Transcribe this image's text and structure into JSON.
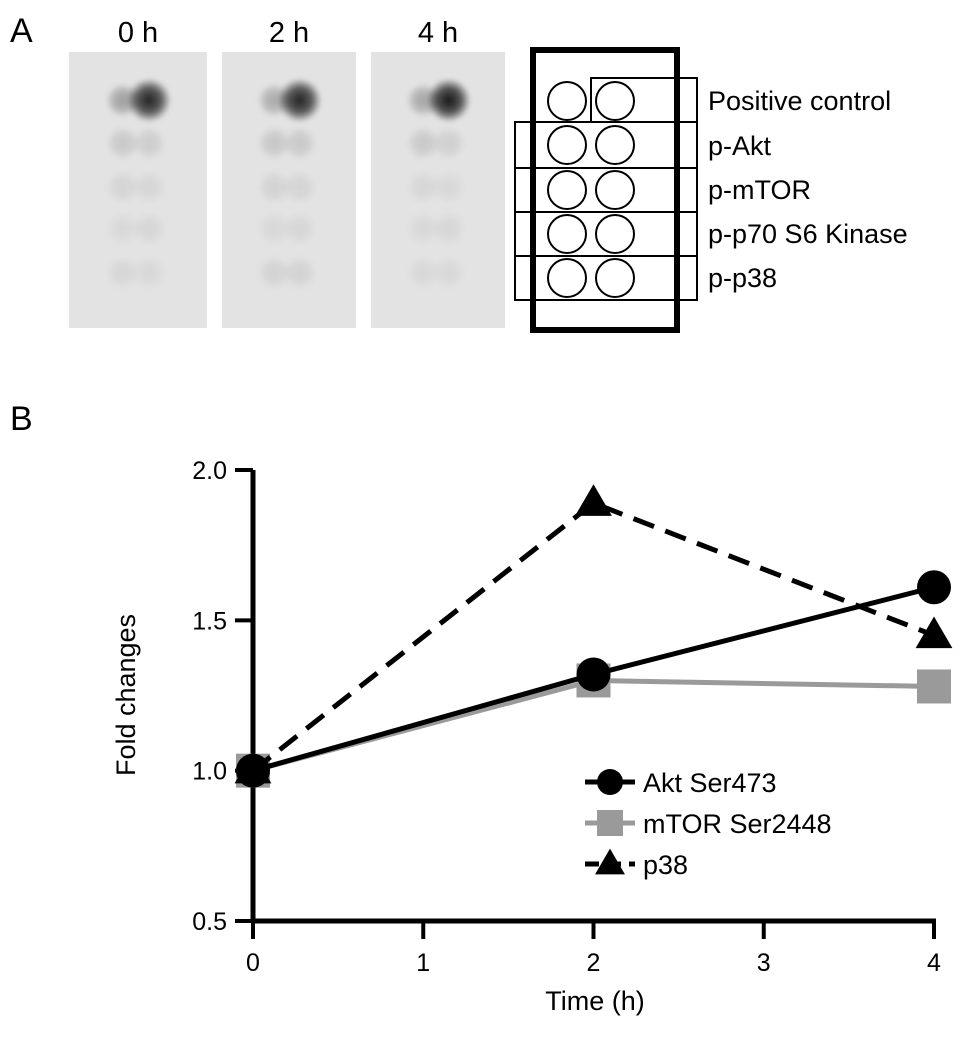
{
  "panel_a": {
    "label": "A",
    "blots": [
      {
        "time_label": "0 h",
        "spots": [
          0.3,
          0.85,
          0.12,
          0.1,
          0.07,
          0.06,
          0.05,
          0.06,
          0.06,
          0.05
        ]
      },
      {
        "time_label": "2 h",
        "spots": [
          0.25,
          0.85,
          0.13,
          0.12,
          0.08,
          0.07,
          0.05,
          0.06,
          0.08,
          0.08
        ]
      },
      {
        "time_label": "4 h",
        "spots": [
          0.27,
          0.9,
          0.12,
          0.09,
          0.06,
          0.05,
          0.05,
          0.06,
          0.05,
          0.05
        ]
      }
    ],
    "array_rows": [
      "Positive control",
      "p-Akt",
      "p-mTOR",
      "p-p70 S6 Kinase",
      "p-p38"
    ]
  },
  "panel_b": {
    "label": "B"
  },
  "chart_data": {
    "type": "line",
    "title": "",
    "xlabel": "Time (h)",
    "ylabel": "Fold changes",
    "xlim": [
      0,
      4
    ],
    "ylim": [
      0.5,
      2.0
    ],
    "xticks": [
      0,
      1,
      2,
      3,
      4
    ],
    "yticks": [
      0.5,
      1.0,
      1.5,
      2.0
    ],
    "xtick_labels": [
      "0",
      "1",
      "2",
      "3",
      "4"
    ],
    "ytick_labels": [
      "0.5",
      "1.0",
      "1.5",
      "2.0"
    ],
    "grid": false,
    "legend_position": "bottom-right",
    "series": [
      {
        "name": "mTOR Ser2448",
        "marker": "square",
        "line": "solid",
        "color": "#9a9a9a",
        "x": [
          0,
          2,
          4
        ],
        "y": [
          1.0,
          1.3,
          1.28
        ]
      },
      {
        "name": "Akt Ser473",
        "marker": "circle",
        "line": "solid",
        "color": "#000000",
        "x": [
          0,
          2,
          4
        ],
        "y": [
          1.0,
          1.32,
          1.61
        ]
      },
      {
        "name": "p38",
        "marker": "triangle",
        "line": "dashed",
        "color": "#000000",
        "x": [
          0,
          2,
          4
        ],
        "y": [
          1.0,
          1.89,
          1.45
        ]
      }
    ],
    "legend_order": [
      "Akt Ser473",
      "mTOR Ser2448",
      "p38"
    ]
  }
}
